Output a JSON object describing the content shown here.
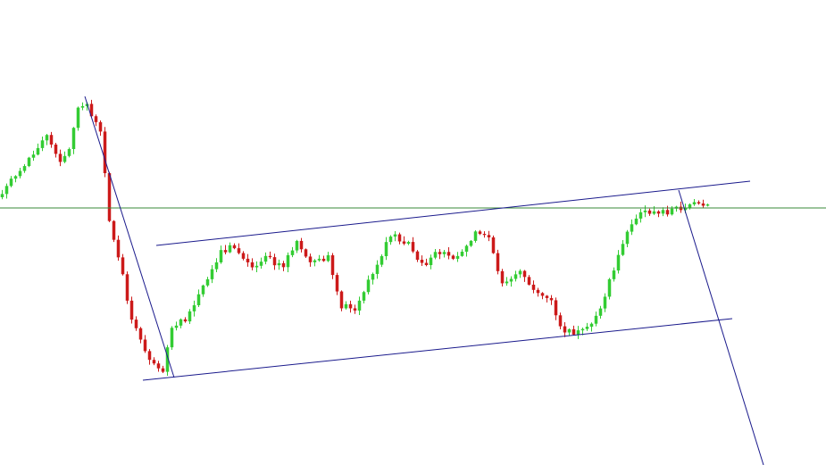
{
  "chart_data": {
    "type": "candlestick",
    "title": "",
    "xlabel": "",
    "ylabel": "",
    "x_range": [
      0,
      185
    ],
    "y_range": [
      0,
      521
    ],
    "grid": false,
    "legend": "none",
    "colors": {
      "background": "#ffffff",
      "bull": "#33cc33",
      "bear": "#cc1a1a",
      "trendline": "#1a1a8c",
      "horizontal_line": "#3a8a3a"
    },
    "horizontal_line": {
      "y": 288.0
    },
    "trendlines": [
      {
        "name": "",
        "from": [
          19.0,
          413.0
        ],
        "to": [
          39.0,
          98.0
        ]
      },
      {
        "name": "",
        "from": [
          35.0,
          246.0
        ],
        "to": [
          168.0,
          318.0
        ]
      },
      {
        "name": "",
        "from": [
          32.0,
          95.0
        ],
        "to": [
          164.0,
          164.0
        ]
      },
      {
        "name": "",
        "from": [
          152.0,
          308.0
        ],
        "to": [
          171.0,
          0.0
        ]
      }
    ],
    "path_keypoints": [
      [
        0,
        300
      ],
      [
        6,
        336
      ],
      [
        11,
        371
      ],
      [
        14,
        338
      ],
      [
        16,
        357
      ],
      [
        18,
        398
      ],
      [
        20,
        403
      ],
      [
        23,
        373
      ],
      [
        25,
        274
      ],
      [
        27,
        236
      ],
      [
        30,
        161
      ],
      [
        34,
        121
      ],
      [
        37,
        107
      ],
      [
        39,
        153
      ],
      [
        42,
        164
      ],
      [
        44,
        178
      ],
      [
        47,
        210
      ],
      [
        50,
        238
      ],
      [
        53,
        246
      ],
      [
        57,
        220
      ],
      [
        60,
        232
      ],
      [
        64,
        222
      ],
      [
        67,
        252
      ],
      [
        70,
        229
      ],
      [
        74,
        232
      ],
      [
        77,
        179
      ],
      [
        80,
        176
      ],
      [
        84,
        215
      ],
      [
        88,
        258
      ],
      [
        92,
        250
      ],
      [
        95,
        225
      ],
      [
        99,
        239
      ],
      [
        103,
        232
      ],
      [
        107,
        262
      ],
      [
        110,
        252
      ],
      [
        113,
        201
      ],
      [
        117,
        216
      ],
      [
        121,
        192
      ],
      [
        124,
        187
      ],
      [
        126,
        152
      ],
      [
        129,
        148
      ],
      [
        132,
        153
      ],
      [
        135,
        173
      ],
      [
        138,
        221
      ],
      [
        141,
        262
      ],
      [
        144,
        283
      ],
      [
        147,
        283
      ],
      [
        150,
        284
      ],
      [
        152,
        288
      ],
      [
        154,
        290
      ],
      [
        158,
        290
      ]
    ]
  }
}
